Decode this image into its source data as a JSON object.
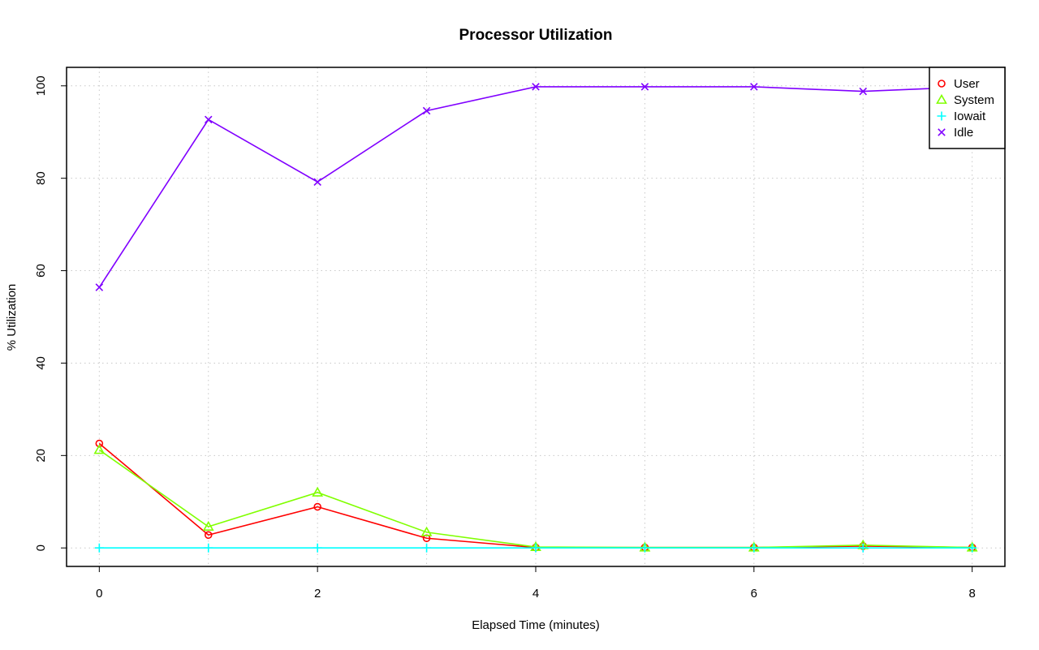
{
  "chart_data": {
    "type": "line",
    "title": "Processor Utilization",
    "xlabel": "Elapsed Time (minutes)",
    "ylabel": "% Utilization",
    "x": [
      0,
      1,
      2,
      3,
      4,
      5,
      6,
      7,
      8
    ],
    "xlim": [
      -0.3,
      8.3
    ],
    "ylim": [
      -4,
      104
    ],
    "x_ticks": [
      0,
      2,
      4,
      6,
      8
    ],
    "y_ticks": [
      0,
      20,
      40,
      60,
      80,
      100
    ],
    "grid": true,
    "legend_position": "top-right",
    "series": [
      {
        "name": "User",
        "color": "#FF0000",
        "marker": "circle",
        "values": [
          22.6,
          2.8,
          8.9,
          2.1,
          0.1,
          0.1,
          0.1,
          0.4,
          0.1
        ]
      },
      {
        "name": "System",
        "color": "#80FF00",
        "marker": "triangle",
        "values": [
          21.2,
          4.6,
          12.0,
          3.4,
          0.2,
          0.1,
          0.1,
          0.6,
          0.1
        ]
      },
      {
        "name": "Iowait",
        "color": "#00FFFF",
        "marker": "plus",
        "values": [
          0.0,
          0.0,
          0.0,
          0.0,
          0.0,
          0.0,
          0.0,
          0.0,
          0.0
        ]
      },
      {
        "name": "Idle",
        "color": "#8000FF",
        "marker": "cross",
        "values": [
          56.4,
          92.7,
          79.2,
          94.6,
          99.8,
          99.8,
          99.8,
          98.8,
          99.8
        ]
      }
    ]
  }
}
